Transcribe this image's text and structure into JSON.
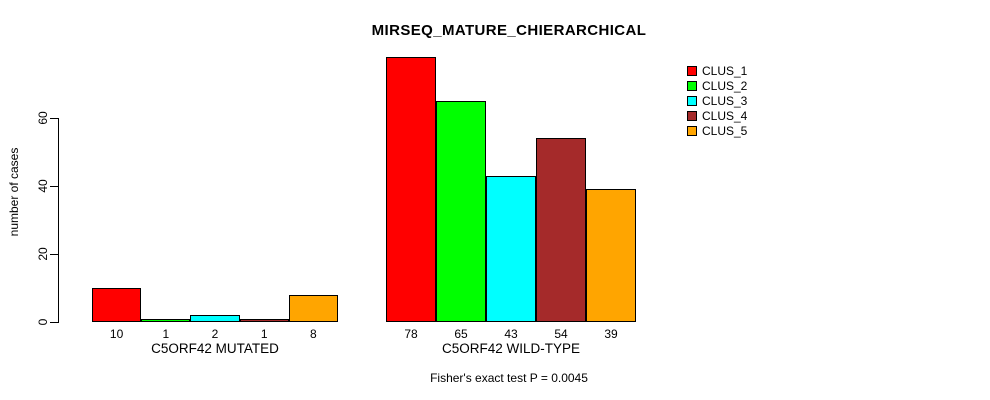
{
  "chart_data": {
    "type": "bar",
    "title": "MIRSEQ_MATURE_CHIERARCHICAL",
    "ylabel": "number of cases",
    "xlabel": "",
    "annotation": "Fisher's exact test P = 0.0045",
    "categories": [
      "C5ORF42 MUTATED",
      "C5ORF42 WILD-TYPE"
    ],
    "series": [
      {
        "name": "CLUS_1",
        "color": "#ff0000",
        "values": [
          10,
          78
        ]
      },
      {
        "name": "CLUS_2",
        "color": "#00ff00",
        "values": [
          1,
          65
        ]
      },
      {
        "name": "CLUS_3",
        "color": "#00ffff",
        "values": [
          2,
          43
        ]
      },
      {
        "name": "CLUS_4",
        "color": "#a52a2a",
        "values": [
          1,
          54
        ]
      },
      {
        "name": "CLUS_5",
        "color": "#ffa500",
        "values": [
          8,
          39
        ]
      }
    ],
    "yticks": [
      0,
      20,
      40,
      60
    ],
    "ylim": [
      0,
      80
    ],
    "grid": false,
    "legend_position": "right",
    "show_values_below_bars": true,
    "bar_border_color": "#000000",
    "axis_color": "#000000",
    "text_color": "#000000",
    "background": "#ffffff"
  }
}
